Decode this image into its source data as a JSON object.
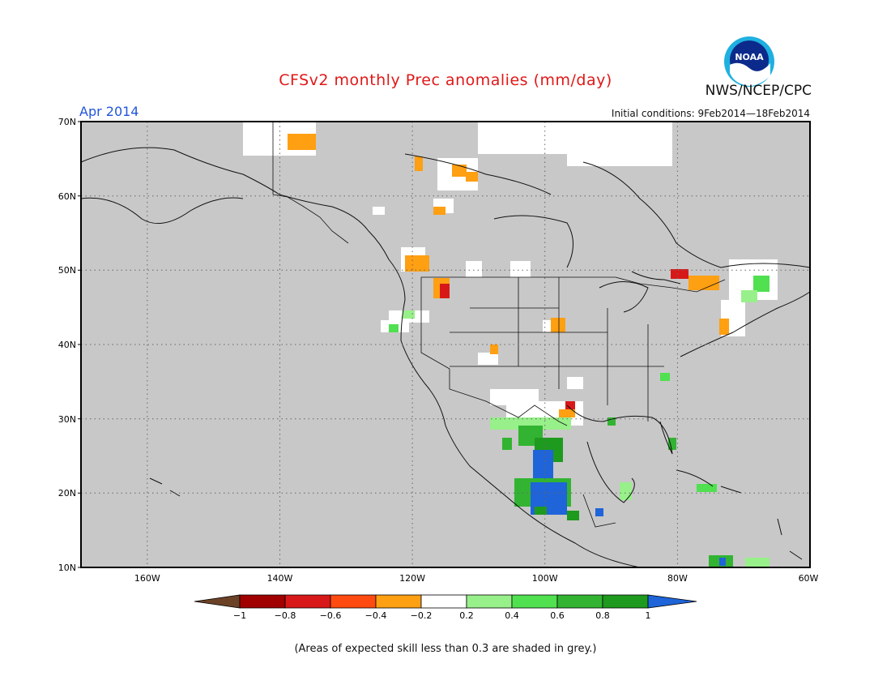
{
  "title": "CFSv2 monthly Prec anomalies (mm/day)",
  "agency": "NWS/NCEP/CPC",
  "logo_text": "NOAA",
  "forecast_month": "Apr 2014",
  "initial_conditions": "Initial conditions: 9Feb2014—18Feb2014",
  "skill_note": "(Areas of expected skill less than 0.3 are shaded in grey.)",
  "colors": {
    "low_skill_grey": "#c8c8c8",
    "coast": "#111111",
    "bins": [
      "#6b4226",
      "#a00000",
      "#d81818",
      "#ff4a10",
      "#ff9f12",
      "#ffffff",
      "#98f08a",
      "#50e050",
      "#32b432",
      "#1e9a1e",
      "#1f64d8"
    ]
  },
  "lat_labels": [
    "70N",
    "60N",
    "50N",
    "40N",
    "30N",
    "20N",
    "10N"
  ],
  "lon_labels": [
    "160W",
    "140W",
    "120W",
    "100W",
    "80W",
    "60W"
  ],
  "colorbar_labels": [
    "−1",
    "−0.8",
    "−0.6",
    "−0.4",
    "−0.2",
    "0.2",
    "0.4",
    "0.6",
    "0.8",
    "1"
  ]
}
